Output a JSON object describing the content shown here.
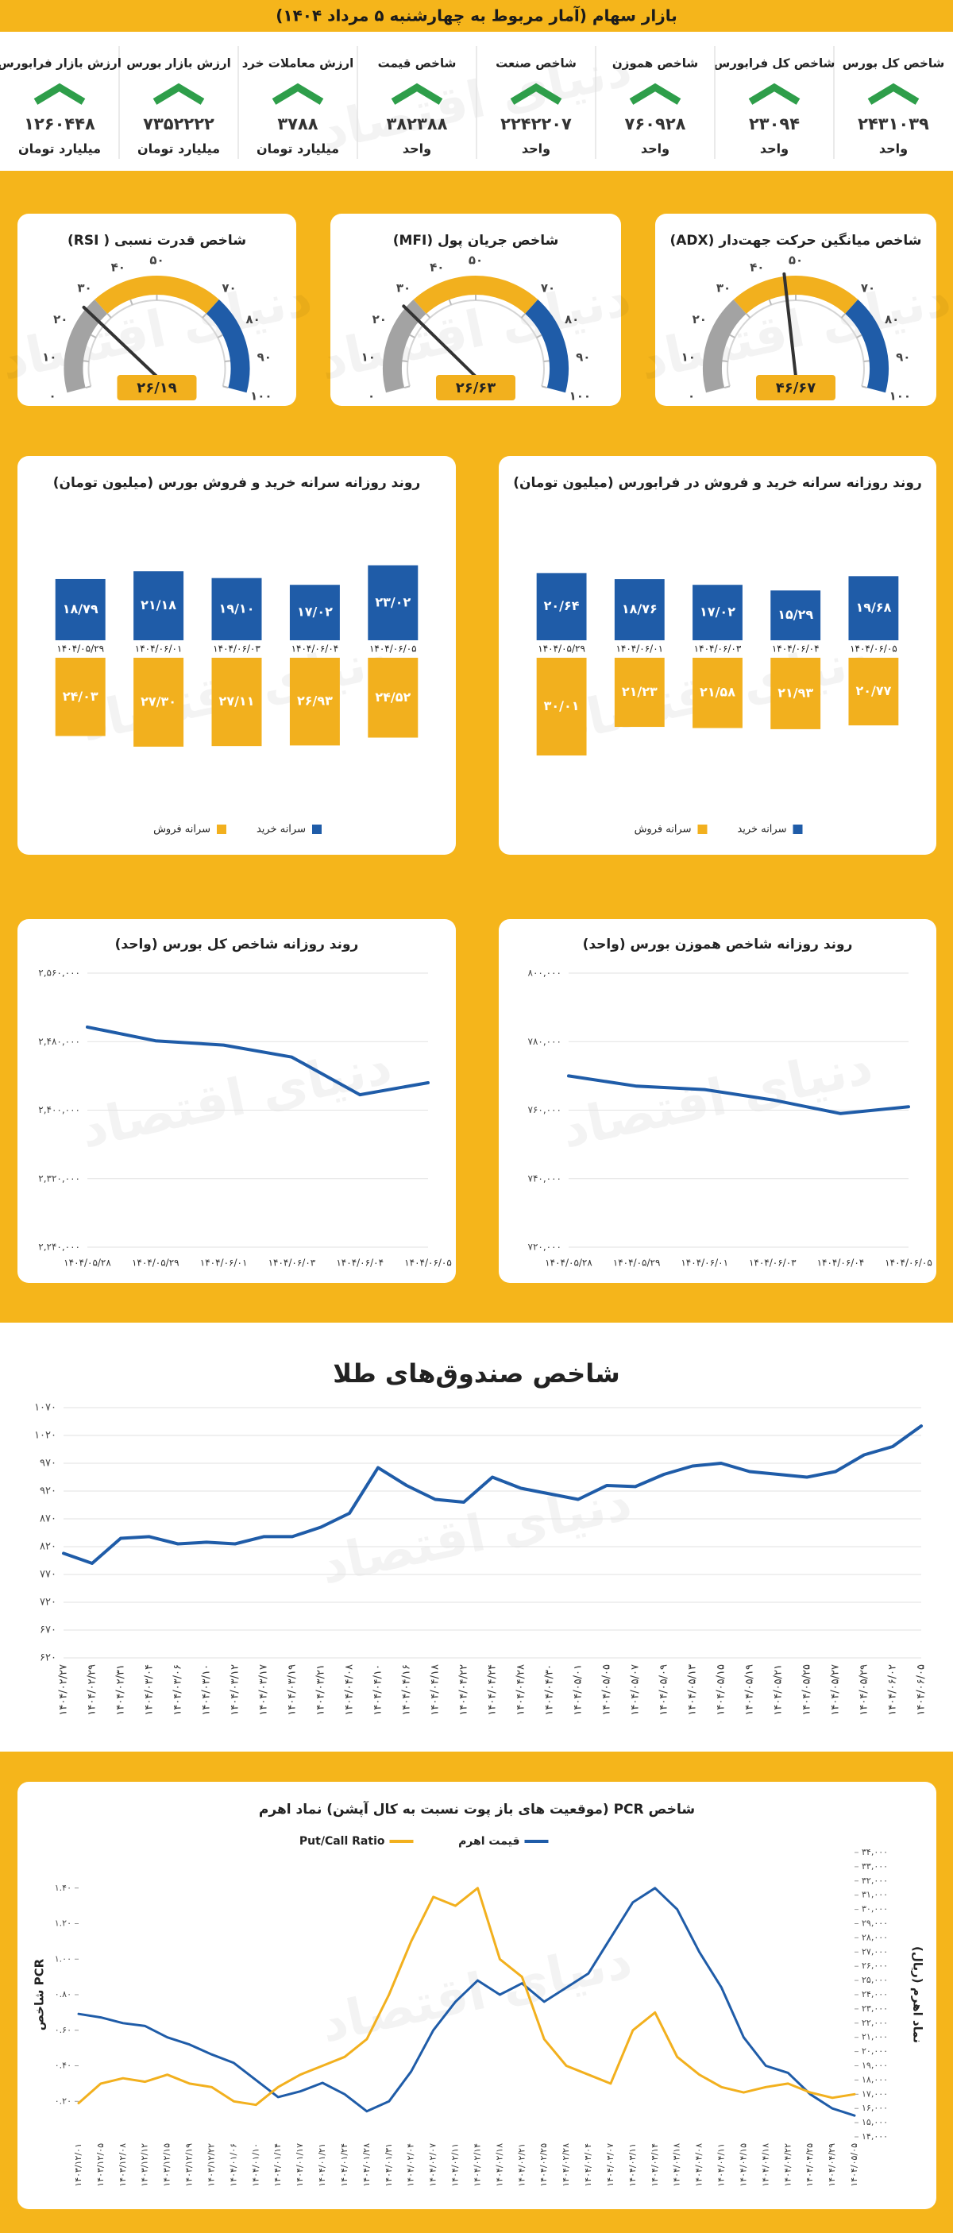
{
  "header": {
    "title": "بازار سهام (آمار مربوط به چهارشنبه ۵ مرداد ۱۴۰۴)"
  },
  "watermark": "دنیای اقتصاد",
  "cards": [
    {
      "label": "شاخص کل بورس",
      "value": "۲۴۳۱۰۳۹",
      "unit": "واحد"
    },
    {
      "label": "شاخص کل فرابورس",
      "value": "۲۳۰۹۴",
      "unit": "واحد"
    },
    {
      "label": "شاخص هموزن",
      "value": "۷۶۰۹۲۸",
      "unit": "واحد"
    },
    {
      "label": "شاخص صنعت",
      "value": "۲۲۴۲۲۰۷",
      "unit": "واحد"
    },
    {
      "label": "شاخص قیمت",
      "value": "۳۸۲۳۸۸",
      "unit": "واحد"
    },
    {
      "label": "ارزش معاملات خرد",
      "value": "۳۷۸۸",
      "unit": "میلیارد تومان"
    },
    {
      "label": "ارزش بازار بورس",
      "value": "۷۳۵۲۲۲۲",
      "unit": "میلیارد تومان"
    },
    {
      "label": "ارزش بازار فرابورس",
      "value": "۱۲۶۰۴۴۸",
      "unit": "میلیارد تومان"
    }
  ],
  "chart_data": [
    {
      "type": "gauge",
      "title": "شاخص میانگین حرکت جهت‌دار (ADX)",
      "values": [
        46.67
      ],
      "value_labels": [
        "۴۶/۶۷"
      ],
      "ylim": [
        0,
        100
      ],
      "yticks": [
        {
          "value": 0,
          "label": "۰"
        },
        {
          "value": 10,
          "label": "۱۰"
        },
        {
          "value": 20,
          "label": "۲۰"
        },
        {
          "value": 30,
          "label": "۳۰"
        },
        {
          "value": 40,
          "label": "۴۰"
        },
        {
          "value": 50,
          "label": "۵۰"
        },
        {
          "value": 70,
          "label": "۷۰"
        },
        {
          "value": 80,
          "label": "۸۰"
        },
        {
          "value": 90,
          "label": "۹۰"
        },
        {
          "value": 100,
          "label": "۱۰۰"
        }
      ],
      "bands": [
        {
          "from": 0,
          "to": 30,
          "color": "#a3a3a3"
        },
        {
          "from": 30,
          "to": 70,
          "color": "#f2b01e"
        },
        {
          "from": 70,
          "to": 100,
          "color": "#1f5ca8"
        }
      ]
    },
    {
      "type": "gauge",
      "title": "شاخص جریان پول (MFI)",
      "values": [
        26.63
      ],
      "value_labels": [
        "۲۶/۶۳"
      ],
      "ylim": [
        0,
        100
      ],
      "yticks": [
        {
          "value": 0,
          "label": "۰"
        },
        {
          "value": 10,
          "label": "۱۰"
        },
        {
          "value": 20,
          "label": "۲۰"
        },
        {
          "value": 30,
          "label": "۳۰"
        },
        {
          "value": 40,
          "label": "۴۰"
        },
        {
          "value": 50,
          "label": "۵۰"
        },
        {
          "value": 70,
          "label": "۷۰"
        },
        {
          "value": 80,
          "label": "۸۰"
        },
        {
          "value": 90,
          "label": "۹۰"
        },
        {
          "value": 100,
          "label": "۱۰۰"
        }
      ],
      "bands": [
        {
          "from": 0,
          "to": 30,
          "color": "#a3a3a3"
        },
        {
          "from": 30,
          "to": 70,
          "color": "#f2b01e"
        },
        {
          "from": 70,
          "to": 100,
          "color": "#1f5ca8"
        }
      ]
    },
    {
      "type": "gauge",
      "title": "شاخص قدرت نسبی ( RSI)",
      "values": [
        26.19
      ],
      "value_labels": [
        "۲۶/۱۹"
      ],
      "ylim": [
        0,
        100
      ],
      "yticks": [
        {
          "value": 0,
          "label": "۰"
        },
        {
          "value": 10,
          "label": "۱۰"
        },
        {
          "value": 20,
          "label": "۲۰"
        },
        {
          "value": 30,
          "label": "۳۰"
        },
        {
          "value": 40,
          "label": "۴۰"
        },
        {
          "value": 50,
          "label": "۵۰"
        },
        {
          "value": 70,
          "label": "۷۰"
        },
        {
          "value": 80,
          "label": "۸۰"
        },
        {
          "value": 90,
          "label": "۹۰"
        },
        {
          "value": 100,
          "label": "۱۰۰"
        }
      ],
      "bands": [
        {
          "from": 0,
          "to": 30,
          "color": "#a3a3a3"
        },
        {
          "from": 30,
          "to": 70,
          "color": "#f2b01e"
        },
        {
          "from": 70,
          "to": 100,
          "color": "#1f5ca8"
        }
      ]
    },
    {
      "type": "bar",
      "title": "روند روزانه سرانه خرید و فروش در فرابورس (میلیون تومان)",
      "categories": [
        "۱۴۰۴/۰۵/۲۹",
        "۱۴۰۴/۰۶/۰۱",
        "۱۴۰۴/۰۶/۰۳",
        "۱۴۰۴/۰۶/۰۴",
        "۱۴۰۴/۰۶/۰۵"
      ],
      "series": [
        {
          "name": "سرانه خرید",
          "color": "#1f5ca8",
          "values": [
            20.64,
            18.76,
            17.02,
            15.29,
            19.68
          ],
          "value_labels": [
            "۲۰/۶۴",
            "۱۸/۷۶",
            "۱۷/۰۲",
            "۱۵/۲۹",
            "۱۹/۶۸"
          ]
        },
        {
          "name": "سرانه فروش",
          "color": "#f2b01e",
          "values": [
            30.01,
            21.23,
            21.58,
            21.93,
            20.77
          ],
          "value_labels": [
            "۳۰/۰۱",
            "۲۱/۲۳",
            "۲۱/۵۸",
            "۲۱/۹۳",
            "۲۰/۷۷"
          ]
        }
      ]
    },
    {
      "type": "bar",
      "title": "روند روزانه سرانه خرید و فروش بورس (میلیون تومان)",
      "categories": [
        "۱۴۰۴/۰۵/۲۹",
        "۱۴۰۴/۰۶/۰۱",
        "۱۴۰۴/۰۶/۰۳",
        "۱۴۰۴/۰۶/۰۴",
        "۱۴۰۴/۰۶/۰۵"
      ],
      "series": [
        {
          "name": "سرانه خرید",
          "color": "#1f5ca8",
          "values": [
            18.79,
            21.18,
            19.1,
            17.02,
            23.02
          ],
          "value_labels": [
            "۱۸/۷۹",
            "۲۱/۱۸",
            "۱۹/۱۰",
            "۱۷/۰۲",
            "۲۳/۰۲"
          ]
        },
        {
          "name": "سرانه فروش",
          "color": "#f2b01e",
          "values": [
            24.03,
            27.3,
            27.11,
            26.93,
            24.52
          ],
          "value_labels": [
            "۲۴/۰۳",
            "۲۷/۳۰",
            "۲۷/۱۱",
            "۲۶/۹۳",
            "۲۴/۵۲"
          ]
        }
      ]
    },
    {
      "type": "line",
      "title": "روند روزانه شاخص هموزن بورس (واحد)",
      "categories": [
        "۱۴۰۴/۰۵/۲۸",
        "۱۴۰۴/۰۵/۲۹",
        "۱۴۰۴/۰۶/۰۱",
        "۱۴۰۴/۰۶/۰۳",
        "۱۴۰۴/۰۶/۰۴",
        "۱۴۰۴/۰۶/۰۵"
      ],
      "series": [
        {
          "color": "#1f5ca8",
          "values": [
            770000,
            767000,
            766000,
            763000,
            759000,
            761000
          ]
        }
      ],
      "ylim": [
        720000,
        800000
      ],
      "yticks": [
        {
          "value": 720000,
          "label": "۷۲۰,۰۰۰"
        },
        {
          "value": 740000,
          "label": "۷۴۰,۰۰۰"
        },
        {
          "value": 760000,
          "label": "۷۶۰,۰۰۰"
        },
        {
          "value": 780000,
          "label": "۷۸۰,۰۰۰"
        },
        {
          "value": 800000,
          "label": "۸۰۰,۰۰۰"
        }
      ],
      "grid": true
    },
    {
      "type": "line",
      "title": "روند روزانه شاخص کل بورس (واحد)",
      "categories": [
        "۱۴۰۴/۰۵/۲۸",
        "۱۴۰۴/۰۵/۲۹",
        "۱۴۰۴/۰۶/۰۱",
        "۱۴۰۴/۰۶/۰۳",
        "۱۴۰۴/۰۶/۰۴",
        "۱۴۰۴/۰۶/۰۵"
      ],
      "series": [
        {
          "color": "#1f5ca8",
          "values": [
            2497000,
            2481000,
            2476000,
            2462000,
            2418000,
            2432000
          ]
        }
      ],
      "ylim": [
        2240000,
        2560000
      ],
      "yticks": [
        {
          "value": 2240000,
          "label": "۲,۲۴۰,۰۰۰"
        },
        {
          "value": 2320000,
          "label": "۲,۳۲۰,۰۰۰"
        },
        {
          "value": 2400000,
          "label": "۲,۴۰۰,۰۰۰"
        },
        {
          "value": 2480000,
          "label": "۲,۴۸۰,۰۰۰"
        },
        {
          "value": 2560000,
          "label": "۲,۵۶۰,۰۰۰"
        }
      ],
      "grid": true
    },
    {
      "type": "line",
      "title": "شاخص صندوق‌های طلا",
      "categories": [
        "۱۴۰۴/۰۲/۲۷",
        "۱۴۰۴/۰۲/۲۹",
        "۱۴۰۴/۰۲/۳۱",
        "۱۴۰۴/۰۳/۰۴",
        "۱۴۰۴/۰۳/۰۶",
        "۱۴۰۴/۰۳/۱۰",
        "۱۴۰۴/۰۳/۱۲",
        "۱۴۰۴/۰۳/۱۷",
        "۱۴۰۴/۰۳/۱۹",
        "۱۴۰۴/۰۳/۲۱",
        "۱۴۰۴/۰۴/۰۸",
        "۱۴۰۴/۰۴/۱۰",
        "۱۴۰۴/۰۴/۱۶",
        "۱۴۰۴/۰۴/۱۸",
        "۱۴۰۴/۰۴/۲۲",
        "۱۴۰۴/۰۴/۲۴",
        "۱۴۰۴/۰۴/۲۸",
        "۱۴۰۴/۰۴/۳۰",
        "۱۴۰۴/۰۵/۰۱",
        "۱۴۰۴/۰۵/۰۵",
        "۱۴۰۴/۰۵/۰۷",
        "۱۴۰۴/۰۵/۰۹",
        "۱۴۰۴/۰۵/۱۳",
        "۱۴۰۴/۰۵/۱۵",
        "۱۴۰۴/۰۵/۱۹",
        "۱۴۰۴/۰۵/۲۱",
        "۱۴۰۴/۰۵/۲۵",
        "۱۴۰۴/۰۵/۲۷",
        "۱۴۰۴/۰۵/۲۹",
        "۱۴۰۴/۰۶/۰۲",
        "۱۴۰۴/۰۶/۰۵"
      ],
      "series": [
        {
          "color": "#1f5ca8",
          "values": [
            808,
            790,
            835,
            838,
            825,
            828,
            825,
            838,
            838,
            855,
            880,
            962,
            930,
            905,
            900,
            945,
            925,
            915,
            905,
            930,
            928,
            950,
            965,
            970,
            955,
            950,
            945,
            955,
            985,
            1000,
            1037
          ]
        }
      ],
      "ylim": [
        620,
        1070
      ],
      "yticks": [
        {
          "value": 620,
          "label": "۶۲۰"
        },
        {
          "value": 670,
          "label": "۶۷۰"
        },
        {
          "value": 720,
          "label": "۷۲۰"
        },
        {
          "value": 770,
          "label": "۷۷۰"
        },
        {
          "value": 820,
          "label": "۸۲۰"
        },
        {
          "value": 870,
          "label": "۸۷۰"
        },
        {
          "value": 920,
          "label": "۹۲۰"
        },
        {
          "value": 970,
          "label": "۹۷۰"
        },
        {
          "value": 1020,
          "label": "۱۰۲۰"
        },
        {
          "value": 1070,
          "label": "۱۰۷۰"
        }
      ],
      "grid": true
    },
    {
      "type": "line",
      "title": "شاخص PCR (موقعیت های باز پوت نسبت به کال آپشن) نماد اهرم",
      "ylabel": "شاخص PCR",
      "y2label": "نماد اهرم (ریال)",
      "legend": true,
      "categories": [
        "۱۴۰۳/۱۲/۰۱",
        "۱۴۰۳/۱۲/۰۵",
        "۱۴۰۳/۱۲/۰۸",
        "۱۴۰۳/۱۲/۱۲",
        "۱۴۰۳/۱۲/۱۵",
        "۱۴۰۳/۱۲/۱۹",
        "۱۴۰۳/۱۲/۲۲",
        "۱۴۰۴/۰۱/۰۶",
        "۱۴۰۴/۰۱/۱۰",
        "۱۴۰۴/۰۱/۱۴",
        "۱۴۰۴/۰۱/۱۷",
        "۱۴۰۴/۰۱/۲۱",
        "۱۴۰۴/۰۱/۲۴",
        "۱۴۰۴/۰۱/۲۸",
        "۱۴۰۴/۰۱/۳۱",
        "۱۴۰۴/۰۲/۰۴",
        "۱۴۰۴/۰۲/۰۷",
        "۱۴۰۴/۰۲/۱۱",
        "۱۴۰۴/۰۲/۱۴",
        "۱۴۰۴/۰۲/۱۸",
        "۱۴۰۴/۰۲/۲۱",
        "۱۴۰۴/۰۲/۲۵",
        "۱۴۰۴/۰۲/۲۸",
        "۱۴۰۴/۰۳/۰۴",
        "۱۴۰۴/۰۳/۰۷",
        "۱۴۰۴/۰۳/۱۱",
        "۱۴۰۴/۰۳/۱۴",
        "۱۴۰۴/۰۳/۱۸",
        "۱۴۰۴/۰۴/۰۸",
        "۱۴۰۴/۰۴/۱۱",
        "۱۴۰۴/۰۴/۱۵",
        "۱۴۰۴/۰۴/۱۸",
        "۱۴۰۴/۰۴/۲۲",
        "۱۴۰۴/۰۴/۲۵",
        "۱۴۰۴/۰۴/۲۹",
        "۱۴۰۴/۰۵/۰۵"
      ],
      "series": [
        {
          "name": "قیمت اهرم",
          "color": "#1f5ca8",
          "axis": "y2",
          "values": [
            22650,
            22400,
            22000,
            21800,
            21000,
            20500,
            19800,
            19200,
            18000,
            16800,
            17200,
            17800,
            17000,
            15800,
            16500,
            18600,
            21500,
            23500,
            25000,
            24000,
            24800,
            23500,
            24500,
            25500,
            28000,
            30500,
            31500,
            30000,
            27000,
            24500,
            21000,
            19000,
            18500,
            17000,
            16000,
            15500
          ]
        },
        {
          "name": "Put/Call Ratio",
          "color": "#f2b01e",
          "values": [
            0.19,
            0.3,
            0.33,
            0.31,
            0.35,
            0.3,
            0.28,
            0.2,
            0.18,
            0.28,
            0.35,
            0.4,
            0.45,
            0.55,
            0.8,
            1.1,
            1.35,
            1.3,
            1.4,
            1.0,
            0.9,
            0.55,
            0.4,
            0.35,
            0.3,
            0.6,
            0.7,
            0.45,
            0.35,
            0.28,
            0.25,
            0.28,
            0.3,
            0.25,
            0.22,
            0.24
          ]
        }
      ],
      "ylim": [
        0,
        1.6
      ],
      "yticks": [
        {
          "value": 0.2,
          "label": "۰.۲۰"
        },
        {
          "value": 0.4,
          "label": "۰.۴۰"
        },
        {
          "value": 0.6,
          "label": "۰.۶۰"
        },
        {
          "value": 0.8,
          "label": "۰.۸۰"
        },
        {
          "value": 1.0,
          "label": "۱.۰۰"
        },
        {
          "value": 1.2,
          "label": "۱.۲۰"
        },
        {
          "value": 1.4,
          "label": "۱.۴۰"
        }
      ],
      "y2lim": [
        14000,
        34000
      ],
      "y2ticks": [
        {
          "value": 14000,
          "label": "۱۴,۰۰۰"
        },
        {
          "value": 15000,
          "label": "۱۵,۰۰۰"
        },
        {
          "value": 16000,
          "label": "۱۶,۰۰۰"
        },
        {
          "value": 17000,
          "label": "۱۷,۰۰۰"
        },
        {
          "value": 18000,
          "label": "۱۸,۰۰۰"
        },
        {
          "value": 19000,
          "label": "۱۹,۰۰۰"
        },
        {
          "value": 20000,
          "label": "۲۰,۰۰۰"
        },
        {
          "value": 21000,
          "label": "۲۱,۰۰۰"
        },
        {
          "value": 22000,
          "label": "۲۲,۰۰۰"
        },
        {
          "value": 23000,
          "label": "۲۳,۰۰۰"
        },
        {
          "value": 24000,
          "label": "۲۴,۰۰۰"
        },
        {
          "value": 25000,
          "label": "۲۵,۰۰۰"
        },
        {
          "value": 26000,
          "label": "۲۶,۰۰۰"
        },
        {
          "value": 27000,
          "label": "۲۷,۰۰۰"
        },
        {
          "value": 28000,
          "label": "۲۸,۰۰۰"
        },
        {
          "value": 29000,
          "label": "۲۹,۰۰۰"
        },
        {
          "value": 30000,
          "label": "۳۰,۰۰۰"
        },
        {
          "value": 31000,
          "label": "۳۱,۰۰۰"
        },
        {
          "value": 32000,
          "label": "۳۲,۰۰۰"
        },
        {
          "value": 33000,
          "label": "۳۳,۰۰۰"
        },
        {
          "value": 34000,
          "label": "۳۴,۰۰۰"
        }
      ],
      "grid": false
    }
  ]
}
